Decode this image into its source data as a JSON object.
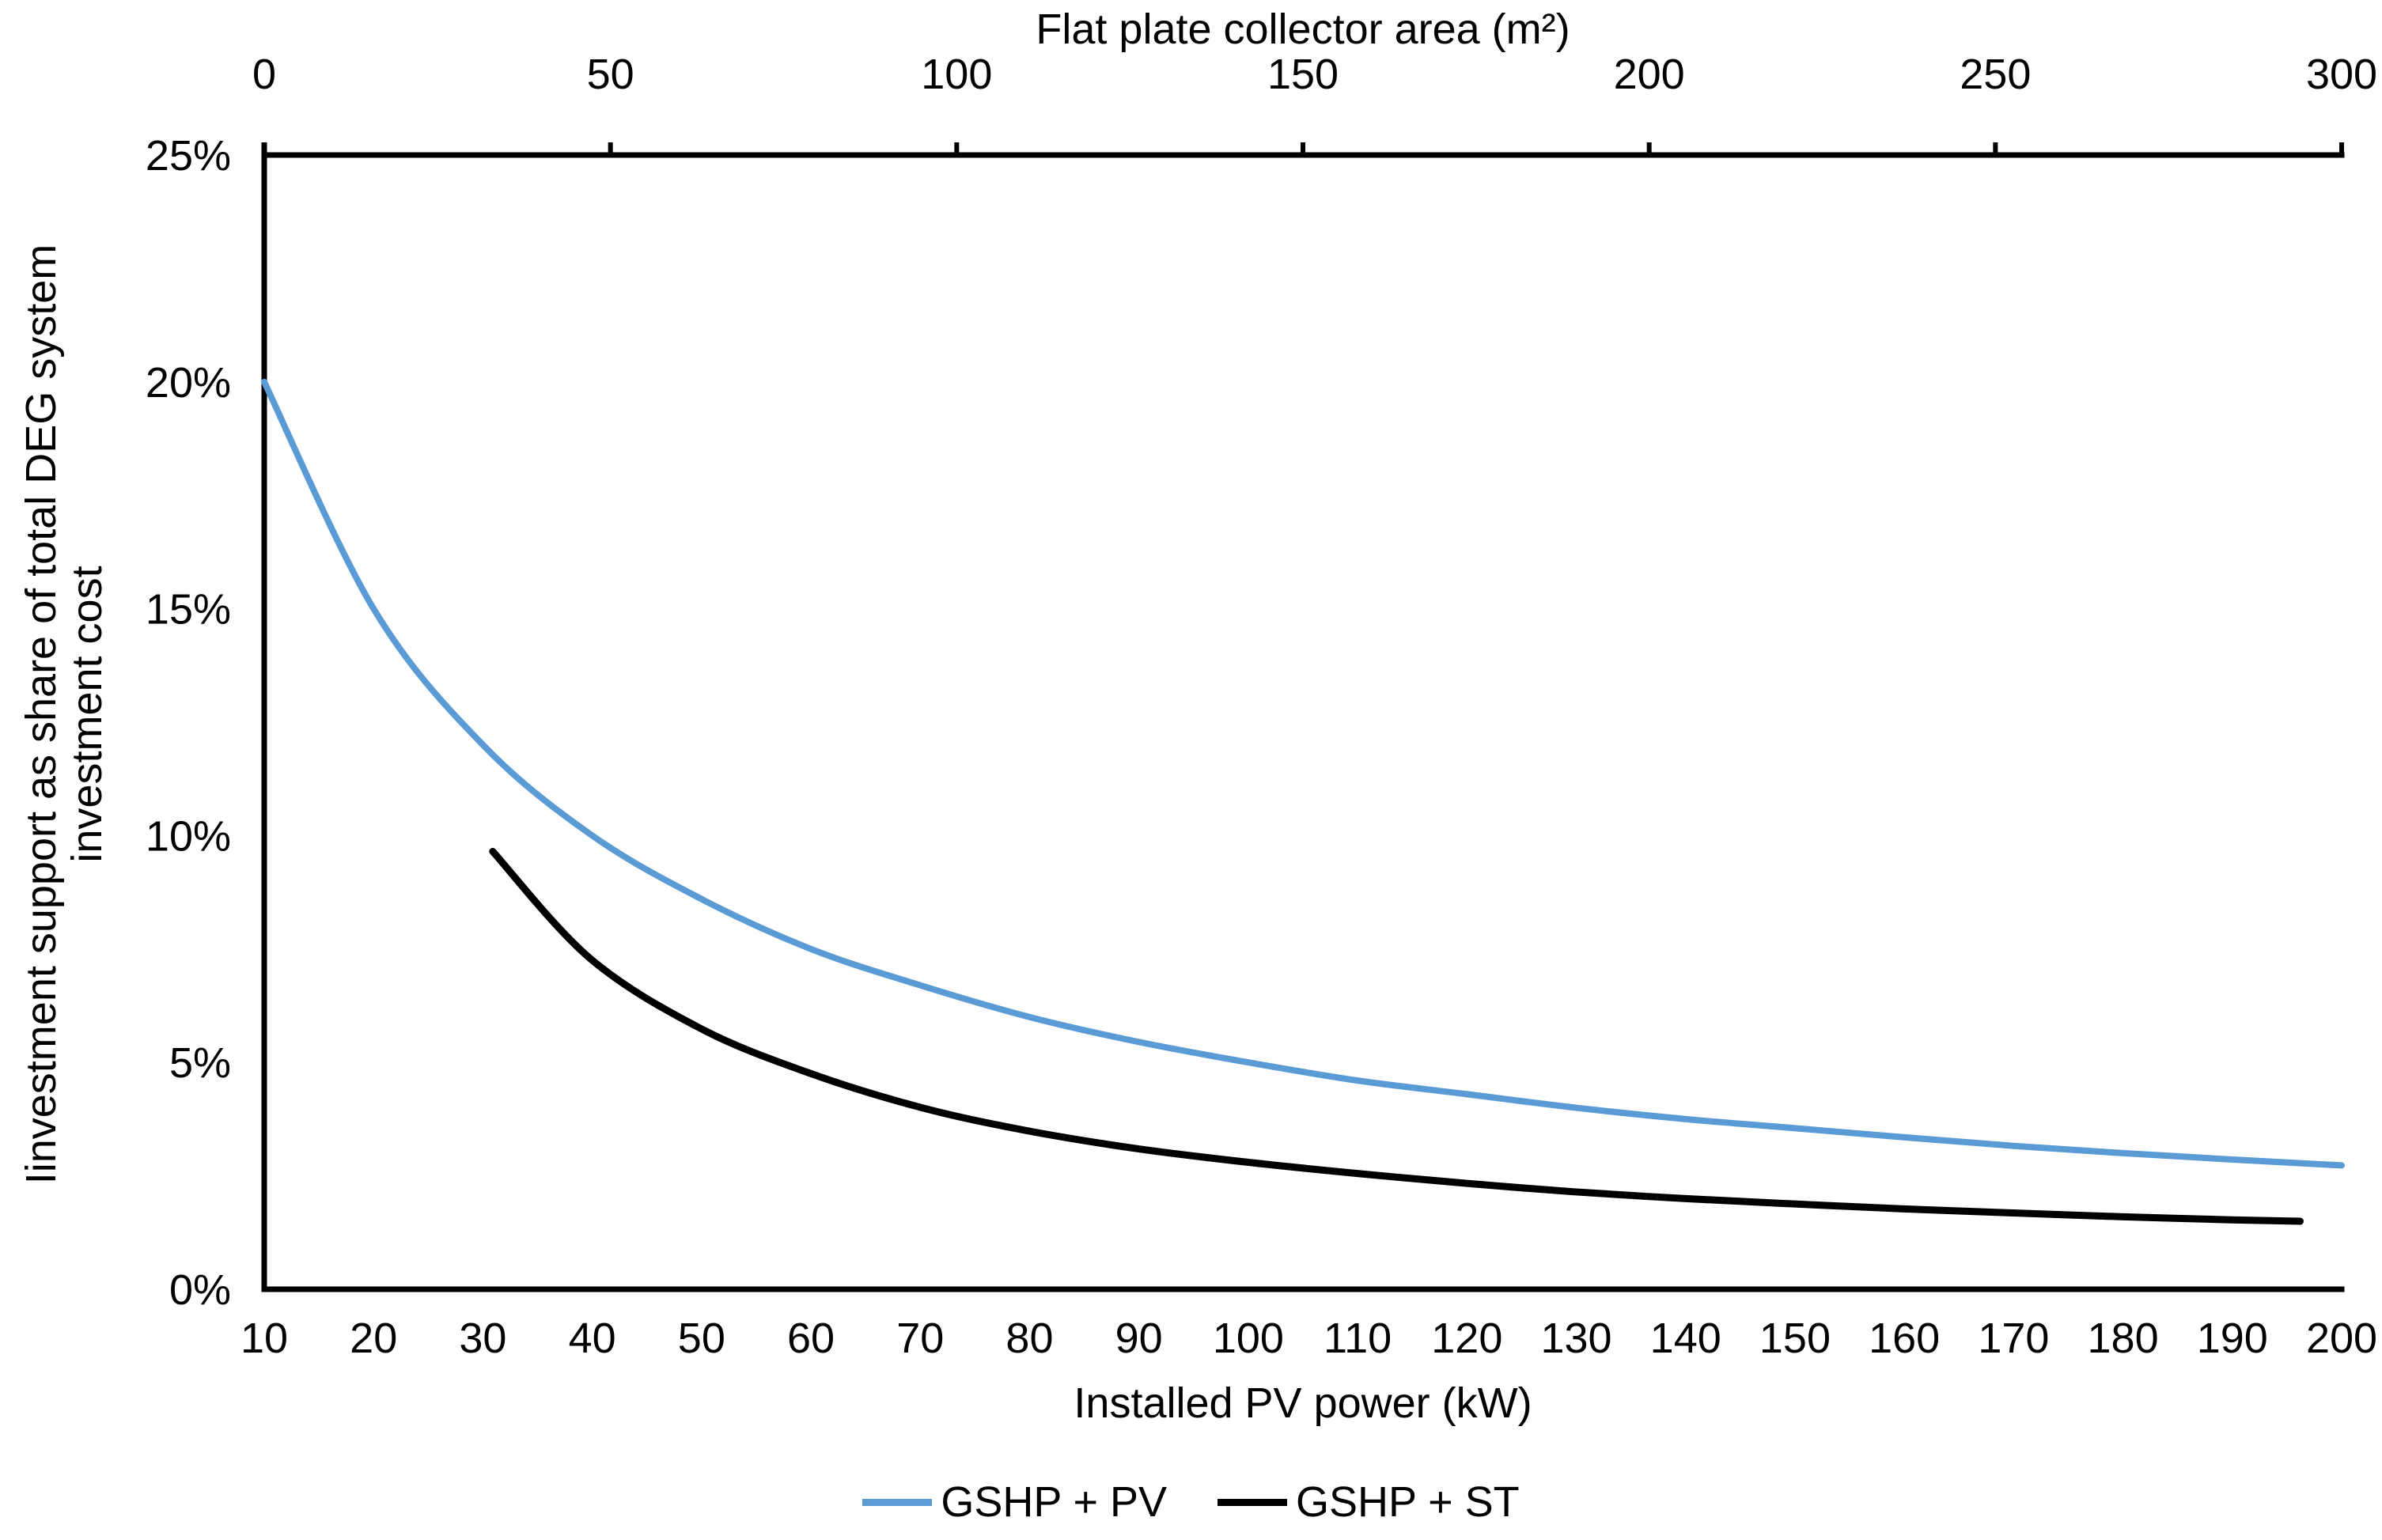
{
  "chart_data": {
    "type": "line",
    "title": "",
    "top_axis_title": "Flat plate collector area (m²)",
    "bottom_axis_title": "Installed PV power (kW)",
    "y_axis_title_line1": "Iinvestment support as share of total DEG system",
    "y_axis_title_line2": "investment cost",
    "grid": false,
    "legend_position": "bottom-center",
    "axes": {
      "bottom": {
        "label": "Installed PV power (kW)",
        "min": 10,
        "max": 200,
        "ticks": [
          10,
          20,
          30,
          40,
          50,
          60,
          70,
          80,
          90,
          100,
          110,
          120,
          130,
          140,
          150,
          160,
          170,
          180,
          190,
          200
        ]
      },
      "top": {
        "label": "Flat plate collector area (m²)",
        "min": 0,
        "max": 300,
        "ticks": [
          0,
          50,
          100,
          150,
          200,
          250,
          300
        ]
      },
      "y": {
        "min": 0,
        "max": 25,
        "ticks": [
          0,
          5,
          10,
          15,
          20,
          25
        ],
        "tick_labels": [
          "0%",
          "5%",
          "10%",
          "15%",
          "20%",
          "25%"
        ]
      }
    },
    "legend": [
      {
        "label": "GSHP + PV",
        "color": "#5B9BD5"
      },
      {
        "label": "GSHP + ST",
        "color": "#000000"
      }
    ],
    "series": [
      {
        "name": "GSHP + PV",
        "x_axis": "bottom",
        "color": "#5B9BD5",
        "stroke_width": 8,
        "x": [
          10,
          20,
          30,
          40,
          50,
          60,
          70,
          80,
          90,
          100,
          110,
          120,
          130,
          140,
          150,
          160,
          170,
          180,
          190,
          200
        ],
        "y": [
          20.0,
          15.0,
          12.0,
          10.0,
          8.6,
          7.5,
          6.7,
          6.0,
          5.45,
          5.0,
          4.6,
          4.3,
          4.0,
          3.75,
          3.55,
          3.35,
          3.16,
          3.0,
          2.86,
          2.73
        ]
      },
      {
        "name": "GSHP + ST",
        "x_axis": "top",
        "color": "#000000",
        "stroke_width": 9,
        "x": [
          33,
          47,
          63,
          79,
          95,
          110,
          126,
          142,
          158,
          174,
          189,
          205,
          221,
          237,
          253,
          268,
          284,
          294
        ],
        "y": [
          9.65,
          7.3,
          5.75,
          4.75,
          4.0,
          3.5,
          3.1,
          2.8,
          2.55,
          2.33,
          2.15,
          2.0,
          1.88,
          1.77,
          1.68,
          1.6,
          1.53,
          1.5
        ]
      }
    ],
    "colors": {
      "axis": "#000000",
      "text": "#000000",
      "background": "#ffffff"
    }
  }
}
